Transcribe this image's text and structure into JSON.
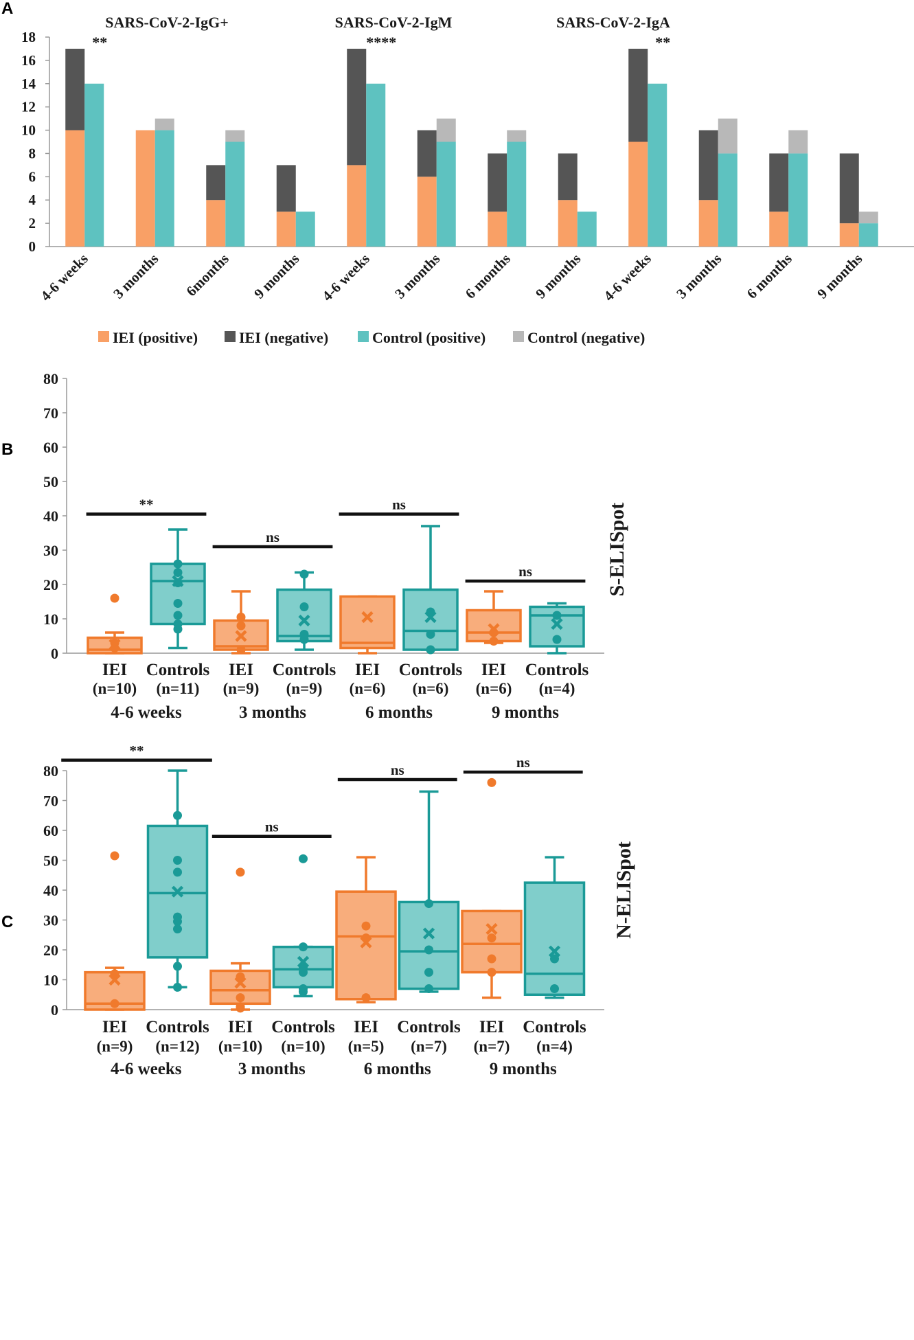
{
  "colors": {
    "iei_pos": "#F9A066",
    "iei_neg": "#555555",
    "ctrl_pos": "#5EC2C0",
    "ctrl_neg": "#B8B8B8",
    "iei_box_fill": "#F8AD7C",
    "iei_box_stroke": "#F07A2C",
    "ctrl_box_fill": "#80CECB",
    "ctrl_box_stroke": "#1A9A97"
  },
  "chart_data": [
    {
      "panel": "A",
      "type": "bar",
      "subtitles": [
        "SARS-CoV-2-IgG+",
        "SARS-CoV-2-IgM",
        "SARS-CoV-2-IgA"
      ],
      "categories": [
        "4-6 weeks",
        "3 months",
        "6months",
        "9 months",
        "4-6 weeks",
        "3 months",
        "6 months",
        "9 months",
        "4-6 weeks",
        "3 months",
        "6 months",
        "9 months"
      ],
      "ylim": [
        0,
        18
      ],
      "yticks": [
        "0",
        "2",
        "4",
        "6",
        "8",
        "10",
        "12",
        "14",
        "16",
        "18"
      ],
      "series": [
        {
          "name": "IEI (positive)",
          "stack": "IEI",
          "values": [
            10,
            10,
            4,
            3,
            7,
            6,
            3,
            4,
            9,
            4,
            3,
            2
          ]
        },
        {
          "name": "IEI (negative)",
          "stack": "IEI",
          "values": [
            7,
            0,
            3,
            4,
            10,
            4,
            5,
            4,
            8,
            6,
            5,
            6
          ]
        },
        {
          "name": "Control (positive)",
          "stack": "Control",
          "values": [
            14,
            10,
            9,
            3,
            14,
            9,
            9,
            3,
            14,
            8,
            8,
            2
          ]
        },
        {
          "name": "Control (negative)",
          "stack": "Control",
          "values": [
            0,
            1,
            1,
            0,
            0,
            2,
            1,
            0,
            0,
            3,
            2,
            1
          ]
        }
      ],
      "annotations": [
        {
          "category_index": 0,
          "text": "**"
        },
        {
          "category_index": 4,
          "text": "****"
        },
        {
          "category_index": 8,
          "text": "**"
        }
      ],
      "legend": [
        "IEI (positive)",
        "IEI (negative)",
        "Control (positive)",
        "Control (negative)"
      ]
    },
    {
      "panel": "B",
      "type": "box",
      "ylabel": "S-ELISpot",
      "ylim": [
        0,
        80
      ],
      "yticks": [
        "0",
        "10",
        "20",
        "30",
        "40",
        "50",
        "60",
        "70",
        "80"
      ],
      "timepoints": [
        "4-6 weeks",
        "3 months",
        "6 months",
        "9 months"
      ],
      "boxes": [
        {
          "group": "IEI",
          "n": "(n=10)",
          "min": 0,
          "q1": 0,
          "median": 1,
          "q3": 4.5,
          "max": 6,
          "mean": 2.5,
          "points": [
            3,
            1.5
          ],
          "outliers": [
            16
          ]
        },
        {
          "group": "Controls",
          "n": "(n=11)",
          "min": 1.5,
          "q1": 8.5,
          "median": 21,
          "q3": 26,
          "max": 36,
          "mean": 21,
          "points": [
            26,
            23.5,
            20.5,
            14.5,
            11,
            8.5,
            7
          ],
          "outliers": []
        },
        {
          "group": "IEI",
          "n": "(n=9)",
          "min": 0,
          "q1": 1,
          "median": 2,
          "q3": 9.5,
          "max": 18,
          "mean": 5,
          "points": [
            10.5,
            8,
            1
          ],
          "outliers": []
        },
        {
          "group": "Controls",
          "n": "(n=9)",
          "min": 1,
          "q1": 3.5,
          "median": 5,
          "q3": 18.5,
          "max": 23.5,
          "mean": 9.5,
          "points": [
            23,
            13.5,
            5.5,
            4
          ],
          "outliers": []
        },
        {
          "group": "IEI",
          "n": "(n=6)",
          "min": 0,
          "q1": 1.5,
          "median": 3,
          "q3": 16.5,
          "max": 16.5,
          "mean": 10.5,
          "points": [],
          "outliers": []
        },
        {
          "group": "Controls",
          "n": "(n=6)",
          "min": 1,
          "q1": 1,
          "median": 6.5,
          "q3": 18.5,
          "max": 37,
          "mean": 10.5,
          "points": [
            12,
            5.5,
            1
          ],
          "outliers": []
        },
        {
          "group": "IEI",
          "n": "(n=6)",
          "min": 3,
          "q1": 3.5,
          "median": 6,
          "q3": 12.5,
          "max": 18,
          "mean": 7,
          "points": [
            6,
            3.5
          ],
          "outliers": []
        },
        {
          "group": "Controls",
          "n": "(n=4)",
          "min": 0,
          "q1": 2,
          "median": 11,
          "q3": 13.5,
          "max": 14.5,
          "mean": 8.5,
          "points": [
            11,
            4
          ],
          "outliers": []
        }
      ],
      "significance": [
        {
          "from_box": 0,
          "to_box": 1,
          "value": 40.5,
          "label": "**"
        },
        {
          "from_box": 2,
          "to_box": 3,
          "value": 31,
          "label": "ns"
        },
        {
          "from_box": 4,
          "to_box": 5,
          "value": 40.5,
          "label": "ns"
        },
        {
          "from_box": 6,
          "to_box": 7,
          "value": 21,
          "label": "ns"
        }
      ]
    },
    {
      "panel": "C",
      "type": "box",
      "ylabel": "N-ELISpot",
      "ylim": [
        0,
        80
      ],
      "yticks": [
        "0",
        "10",
        "20",
        "30",
        "40",
        "50",
        "60",
        "70",
        "80"
      ],
      "timepoints": [
        "4-6 weeks",
        "3 months",
        "6 months",
        "9 months"
      ],
      "boxes": [
        {
          "group": "IEI",
          "n": "(n=9)",
          "min": 0,
          "q1": 0,
          "median": 2,
          "q3": 12.5,
          "max": 14,
          "mean": 10,
          "points": [
            12,
            2
          ],
          "outliers": [
            51.5
          ]
        },
        {
          "group": "Controls",
          "n": "(n=12)",
          "min": 7.5,
          "q1": 17.5,
          "median": 39,
          "q3": 61.5,
          "max": 80,
          "mean": 39.5,
          "points": [
            65,
            50,
            46,
            31,
            29.5,
            27,
            14.5,
            7.5
          ],
          "outliers": []
        },
        {
          "group": "IEI",
          "n": "(n=10)",
          "min": 0,
          "q1": 2,
          "median": 6.5,
          "q3": 13,
          "max": 15.5,
          "mean": 9,
          "points": [
            11,
            4,
            1,
            0.5
          ],
          "outliers": [
            46
          ]
        },
        {
          "group": "Controls",
          "n": "(n=10)",
          "min": 4.5,
          "q1": 7.5,
          "median": 13.5,
          "q3": 21,
          "max": 21,
          "mean": 16,
          "points": [
            21,
            14,
            12.5,
            7,
            6
          ],
          "outliers": [
            50.5
          ]
        },
        {
          "group": "IEI",
          "n": "(n=5)",
          "min": 2.5,
          "q1": 3.5,
          "median": 24.5,
          "q3": 39.5,
          "max": 51,
          "mean": 22.5,
          "points": [
            28,
            24,
            4
          ],
          "outliers": []
        },
        {
          "group": "Controls",
          "n": "(n=7)",
          "min": 6,
          "q1": 7,
          "median": 19.5,
          "q3": 36,
          "max": 73,
          "mean": 25.5,
          "points": [
            35.5,
            20,
            12.5,
            7
          ],
          "outliers": []
        },
        {
          "group": "IEI",
          "n": "(n=7)",
          "min": 4,
          "q1": 12.5,
          "median": 22,
          "q3": 33,
          "max": 33,
          "mean": 27,
          "points": [
            24,
            17,
            12.5
          ],
          "outliers": [
            76
          ]
        },
        {
          "group": "Controls",
          "n": "(n=4)",
          "min": 4,
          "q1": 5,
          "median": 12,
          "q3": 42.5,
          "max": 51,
          "mean": 19.5,
          "points": [
            17,
            7
          ],
          "outliers": []
        }
      ],
      "significance": [
        {
          "from_box": -0.4,
          "to_box": 1.1,
          "value": 83.5,
          "label": "**"
        },
        {
          "from_box": 2,
          "to_box": 3,
          "value": 58,
          "label": "ns"
        },
        {
          "from_box": 4,
          "to_box": 5,
          "value": 77,
          "label": "ns"
        },
        {
          "from_box": 6,
          "to_box": 7,
          "value": 79.5,
          "label": "ns"
        }
      ]
    }
  ]
}
